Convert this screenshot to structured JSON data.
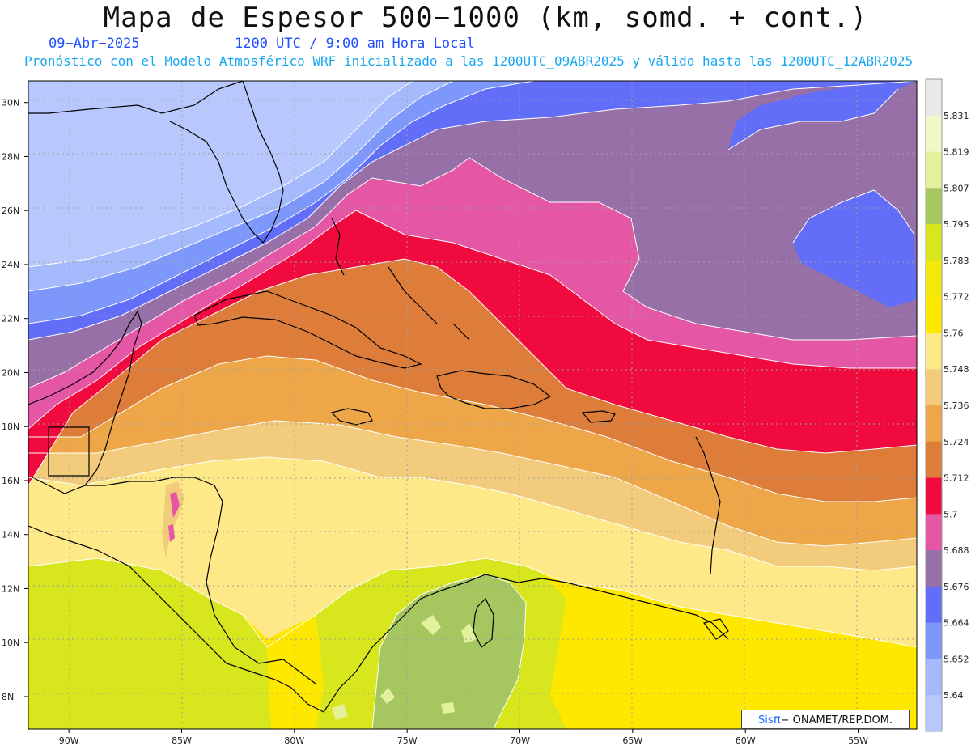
{
  "header": {
    "title": "Mapa de Espesor 500−1000 (km, somd. + cont.)",
    "date": "09−Abr−2025",
    "time": "1200 UTC / 9:00 am Hora Local",
    "forecast": "Pronóstico con el Modelo Atmosférico WRF inicializado a las 1200UTC_09ABR2025 y válido hasta las  1200UTC_12ABR2025"
  },
  "map": {
    "lat_ticks": [
      "30N",
      "28N",
      "26N",
      "24N",
      "22N",
      "20N",
      "18N",
      "16N",
      "14N",
      "12N",
      "10N",
      "8N"
    ],
    "lon_ticks": [
      "90W",
      "85W",
      "80W",
      "75W",
      "70W",
      "65W",
      "60W",
      "55W"
    ],
    "bounds": {
      "lon_min": -91.8,
      "lon_max": -52.4,
      "lat_min": 6.8,
      "lat_max": 30.8
    }
  },
  "colorbar": {
    "labels": [
      "5.831",
      "5.819",
      "5.807",
      "5.795",
      "5.783",
      "5.772",
      "5.76",
      "5.748",
      "5.736",
      "5.724",
      "5.712",
      "5.7",
      "5.688",
      "5.676",
      "5.664",
      "5.652",
      "5.64"
    ],
    "colors": [
      "#e8e8e8",
      "#f2f7c8",
      "#e3f19c",
      "#a6c75f",
      "#d7e61d",
      "#f2e90a",
      "#ffe800",
      "#fde987",
      "#f2cc7c",
      "#eda648",
      "#de7c3a",
      "#f00a3e",
      "#e557a4",
      "#9770a8",
      "#626ef7",
      "#7e97fb",
      "#a5bafd",
      "#b8c8fd"
    ]
  },
  "credit": {
    "prefix": "Sis",
    "pi": "π",
    "suffix": "− ONAMET/REP.DOM."
  }
}
